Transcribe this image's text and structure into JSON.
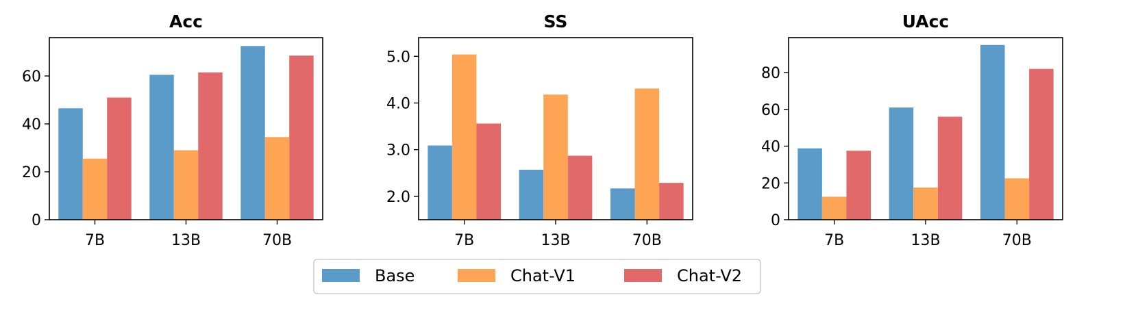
{
  "chart_data": {
    "type": "bar",
    "subplots": [
      {
        "title": "Acc",
        "categories": [
          "7B",
          "13B",
          "70B"
        ],
        "ylim": [
          0,
          76
        ],
        "yticks": [
          0,
          20,
          40,
          60
        ],
        "ytick_labels": [
          "0",
          "20",
          "40",
          "60"
        ],
        "series": [
          {
            "name": "Base",
            "values": [
              46.5,
              60.5,
              72.5
            ]
          },
          {
            "name": "Chat-V1",
            "values": [
              25.5,
              29.0,
              34.5
            ]
          },
          {
            "name": "Chat-V2",
            "values": [
              51.0,
              61.5,
              68.5
            ]
          }
        ]
      },
      {
        "title": "SS",
        "categories": [
          "7B",
          "13B",
          "70B"
        ],
        "ylim": [
          1.5,
          5.4
        ],
        "yticks": [
          2.0,
          3.0,
          4.0,
          5.0
        ],
        "ytick_labels": [
          "2.0",
          "3.0",
          "4.0",
          "5.0"
        ],
        "series": [
          {
            "name": "Base",
            "values": [
              3.09,
              2.57,
              2.17
            ]
          },
          {
            "name": "Chat-V1",
            "values": [
              5.04,
              4.18,
              4.31
            ]
          },
          {
            "name": "Chat-V2",
            "values": [
              3.56,
              2.87,
              2.29
            ]
          }
        ]
      },
      {
        "title": "UAcc",
        "categories": [
          "7B",
          "13B",
          "70B"
        ],
        "ylim": [
          0,
          99
        ],
        "yticks": [
          0,
          20,
          40,
          60,
          80
        ],
        "ytick_labels": [
          "0",
          "20",
          "40",
          "60",
          "80"
        ],
        "series": [
          {
            "name": "Base",
            "values": [
              38.8,
              61.0,
              95.0
            ]
          },
          {
            "name": "Chat-V1",
            "values": [
              12.5,
              17.5,
              22.5
            ]
          },
          {
            "name": "Chat-V2",
            "values": [
              37.5,
              56.0,
              82.0
            ]
          }
        ]
      }
    ],
    "legend": {
      "placement": "bottom-center",
      "entries": [
        "Base",
        "Chat-V1",
        "Chat-V2"
      ]
    },
    "colors": [
      "#5a9bc9",
      "#fea455",
      "#e2696a"
    ],
    "grid": false
  }
}
